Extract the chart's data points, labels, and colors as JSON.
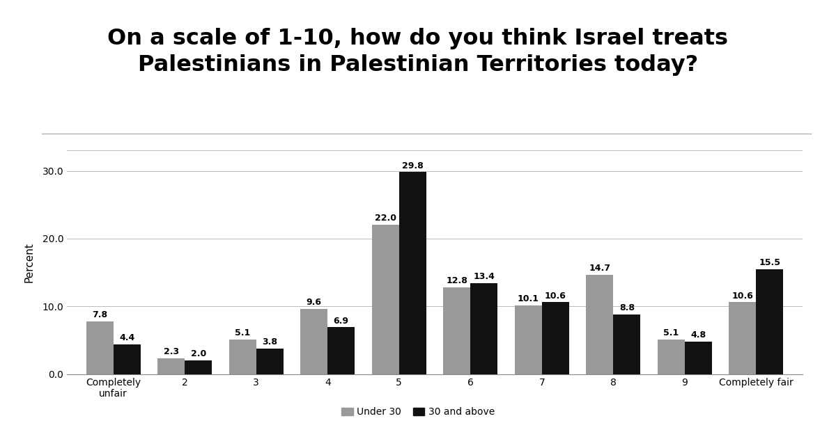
{
  "categories": [
    "Completely\nunfair",
    "2",
    "3",
    "4",
    "5",
    "6",
    "7",
    "8",
    "9",
    "Completely fair"
  ],
  "under30": [
    7.8,
    2.3,
    5.1,
    9.6,
    22.0,
    12.8,
    10.1,
    14.7,
    5.1,
    10.6
  ],
  "above30": [
    4.4,
    2.0,
    3.8,
    6.9,
    29.8,
    13.4,
    10.6,
    8.8,
    4.8,
    15.5
  ],
  "under30_color": "#999999",
  "above30_color": "#111111",
  "title_line1": "On a scale of 1-10, how do you think Israel treats",
  "title_line2": "Palestinians in Palestinian Territories today?",
  "ylabel": "Percent",
  "ylim": [
    0,
    33
  ],
  "yticks": [
    0.0,
    10.0,
    20.0,
    30.0
  ],
  "legend_labels": [
    "Under 30",
    "30 and above"
  ],
  "bar_width": 0.38,
  "background_color": "#ffffff",
  "title_fontsize": 23,
  "label_fontsize": 9.0,
  "tick_fontsize": 10,
  "ylabel_fontsize": 11
}
